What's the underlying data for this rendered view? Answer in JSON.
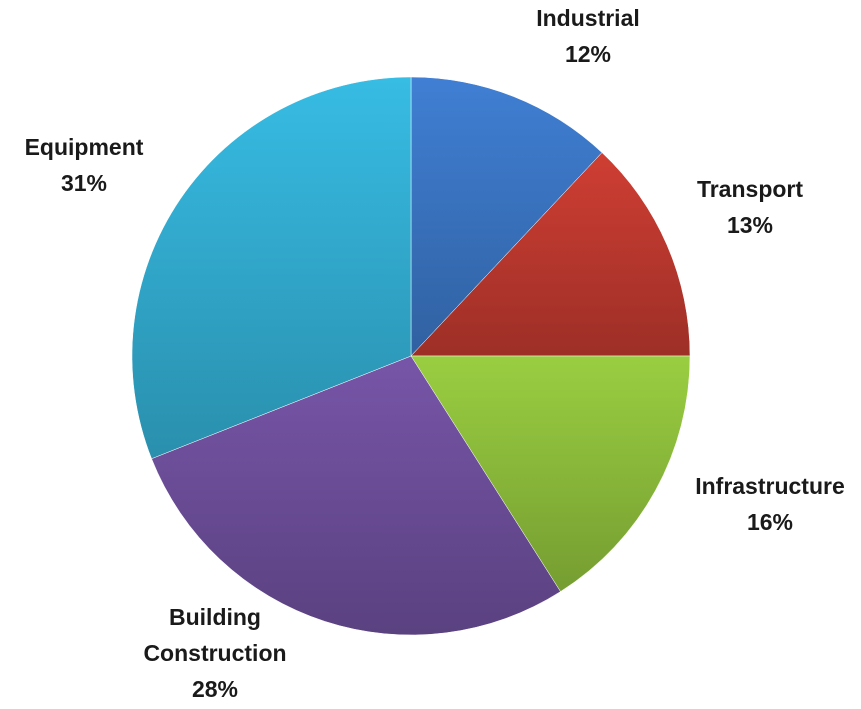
{
  "chart_data": {
    "type": "pie",
    "title": "",
    "slices": [
      {
        "label": "Industrial",
        "value": 12,
        "pct_label": "12%",
        "color": "#3b76c4"
      },
      {
        "label": "Transport",
        "value": 13,
        "pct_label": "13%",
        "color": "#c0392f"
      },
      {
        "label": "Infrastructure",
        "value": 16,
        "pct_label": "16%",
        "color": "#8fbf3c"
      },
      {
        "label": "Building Construction",
        "value": 28,
        "pct_label": "28%",
        "color": "#6e4f9c"
      },
      {
        "label": "Equipment",
        "value": 31,
        "pct_label": "31%",
        "color": "#33aed3"
      }
    ],
    "legend": "none",
    "start_angle": "12 o'clock",
    "direction": "clockwise"
  }
}
